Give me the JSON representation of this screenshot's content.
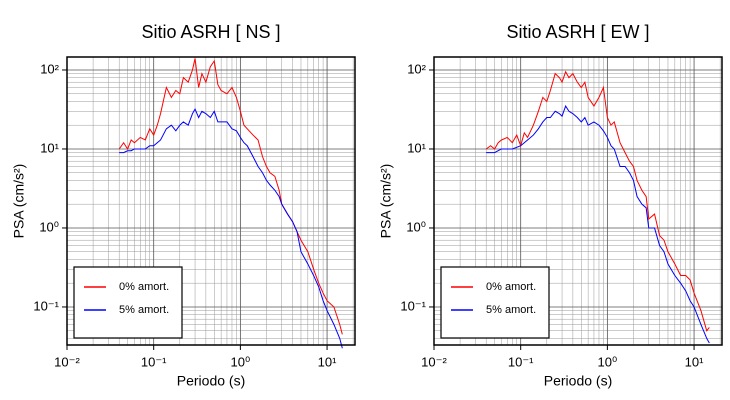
{
  "chart_data": [
    {
      "type": "line",
      "title": "Sitio ASRH [ NS ]",
      "xlabel": "Periodo (s)",
      "ylabel": "PSA (cm/s²)",
      "log_x": true,
      "log_y": true,
      "grid": true,
      "minor_grid": true,
      "legend": "lower left",
      "xlim": [
        0.01,
        21
      ],
      "ylim": [
        0.033,
        146
      ],
      "xticks": [
        {
          "value": 0.01,
          "label": "10⁻²"
        },
        {
          "value": 0.1,
          "label": "10⁻¹"
        },
        {
          "value": 1,
          "label": "10⁰"
        },
        {
          "value": 10,
          "label": "10¹"
        }
      ],
      "yticks": [
        {
          "value": 0.1,
          "label": "10⁻¹"
        },
        {
          "value": 1,
          "label": "10⁰"
        },
        {
          "value": 10,
          "label": "10¹"
        },
        {
          "value": 100,
          "label": "10²"
        }
      ],
      "x": [
        0.04,
        0.045,
        0.05,
        0.055,
        0.06,
        0.07,
        0.08,
        0.09,
        0.1,
        0.11,
        0.12,
        0.14,
        0.16,
        0.18,
        0.2,
        0.22,
        0.25,
        0.28,
        0.3,
        0.33,
        0.36,
        0.4,
        0.45,
        0.5,
        0.55,
        0.6,
        0.7,
        0.8,
        0.9,
        1.0,
        1.1,
        1.2,
        1.4,
        1.6,
        1.8,
        2,
        2.2,
        2.5,
        2.8,
        3,
        3.5,
        4,
        4.5,
        5,
        6,
        7,
        8,
        9,
        10,
        12,
        14,
        15
      ],
      "series": [
        {
          "name": "0% amort.",
          "color": "#ff0000",
          "values": [
            10,
            12,
            10,
            13,
            12,
            14,
            13,
            18,
            15,
            20,
            28,
            60,
            45,
            55,
            50,
            80,
            70,
            100,
            140,
            60,
            90,
            70,
            110,
            130,
            65,
            55,
            50,
            60,
            45,
            30,
            20,
            18,
            15,
            13,
            8,
            6,
            5,
            4.5,
            3,
            2,
            1.5,
            1.2,
            0.9,
            0.7,
            0.5,
            0.3,
            0.2,
            0.15,
            0.12,
            0.1,
            0.06,
            0.045
          ]
        },
        {
          "name": "5% amort.",
          "color": "#0000ff",
          "values": [
            9,
            9,
            9.5,
            9.5,
            10,
            10,
            10,
            11,
            11,
            12,
            13,
            18,
            20,
            17,
            20,
            22,
            20,
            28,
            32,
            25,
            30,
            28,
            25,
            30,
            22,
            22,
            22,
            18,
            17,
            14,
            12,
            11,
            8,
            6,
            5,
            4,
            3.5,
            3,
            2.5,
            2,
            1.5,
            1.2,
            0.9,
            0.5,
            0.35,
            0.25,
            0.18,
            0.12,
            0.09,
            0.06,
            0.04,
            0.03
          ]
        }
      ]
    },
    {
      "type": "line",
      "title": "Sitio ASRH [ EW ]",
      "xlabel": "Periodo (s)",
      "ylabel": "PSA (cm/s²)",
      "log_x": true,
      "log_y": true,
      "grid": true,
      "minor_grid": true,
      "legend": "lower left",
      "xlim": [
        0.01,
        21
      ],
      "ylim": [
        0.033,
        146
      ],
      "xticks": [
        {
          "value": 0.01,
          "label": "10⁻²"
        },
        {
          "value": 0.1,
          "label": "10⁻¹"
        },
        {
          "value": 1,
          "label": "10⁰"
        },
        {
          "value": 10,
          "label": "10¹"
        }
      ],
      "yticks": [
        {
          "value": 0.1,
          "label": "10⁻¹"
        },
        {
          "value": 1,
          "label": "10⁰"
        },
        {
          "value": 10,
          "label": "10¹"
        },
        {
          "value": 100,
          "label": "10²"
        }
      ],
      "x": [
        0.04,
        0.045,
        0.05,
        0.055,
        0.06,
        0.07,
        0.08,
        0.09,
        0.1,
        0.11,
        0.12,
        0.14,
        0.16,
        0.18,
        0.2,
        0.22,
        0.25,
        0.28,
        0.3,
        0.33,
        0.36,
        0.4,
        0.45,
        0.5,
        0.55,
        0.6,
        0.7,
        0.8,
        0.9,
        1.0,
        1.1,
        1.2,
        1.4,
        1.6,
        1.8,
        2,
        2.2,
        2.5,
        2.8,
        3,
        3.5,
        4,
        4.5,
        5,
        6,
        7,
        8,
        9,
        10,
        12,
        14,
        15
      ],
      "series": [
        {
          "name": "0% amort.",
          "color": "#ff0000",
          "values": [
            10,
            11,
            10,
            12,
            13,
            14,
            12,
            15,
            11,
            16,
            14,
            20,
            30,
            45,
            40,
            55,
            90,
            80,
            70,
            95,
            80,
            90,
            70,
            60,
            70,
            45,
            35,
            45,
            60,
            25,
            20,
            22,
            12,
            9,
            7,
            6,
            4,
            3,
            2.5,
            1.3,
            1.5,
            0.8,
            0.7,
            0.5,
            0.35,
            0.25,
            0.25,
            0.22,
            0.15,
            0.09,
            0.05,
            0.055
          ]
        },
        {
          "name": "5% amort.",
          "color": "#0000ff",
          "values": [
            9,
            9,
            9,
            9.5,
            10,
            10,
            10,
            10.5,
            11,
            12,
            13,
            15,
            18,
            22,
            25,
            25,
            30,
            28,
            26,
            35,
            30,
            28,
            25,
            22,
            25,
            20,
            22,
            20,
            17,
            14,
            11,
            10,
            6,
            6,
            5,
            4,
            2.5,
            2,
            1.8,
            1,
            1,
            0.6,
            0.5,
            0.35,
            0.25,
            0.2,
            0.16,
            0.12,
            0.1,
            0.06,
            0.04,
            0.035
          ]
        }
      ]
    }
  ]
}
